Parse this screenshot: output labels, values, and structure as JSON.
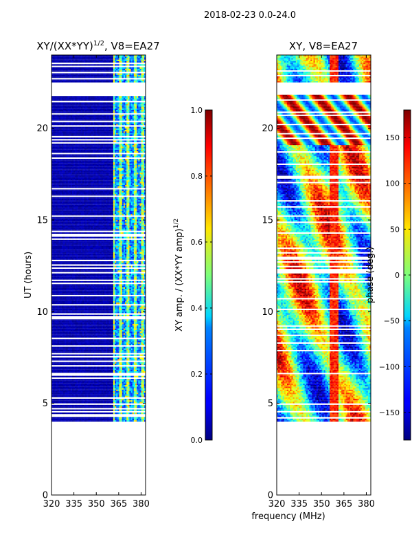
{
  "figure": {
    "suptitle": "2018-02-23 0.0-24.0",
    "common_xlabel": "frequency (MHz)"
  },
  "chart_data": [
    {
      "type": "heatmap",
      "title": "XY/(XX*YY)",
      "title_superscript": "1/2",
      "title_suffix": ", V8=EA27",
      "xlabel": "",
      "ylabel": "UT (hours)",
      "xlim": [
        320,
        383
      ],
      "ylim": [
        0,
        24
      ],
      "xticks": [
        320,
        335,
        350,
        365,
        380
      ],
      "xtick_labels": [
        "320",
        "335",
        "350",
        "365",
        "380"
      ],
      "yticks": [
        0,
        5,
        10,
        15,
        20
      ],
      "ytick_labels": [
        "0",
        "5",
        "10",
        "15",
        "20"
      ],
      "data_time_range": [
        4.0,
        24.0
      ],
      "data_gap": [
        21.9,
        22.5
      ],
      "band_edge_mhz": 361,
      "colorbar": {
        "colormap": "jet",
        "label": "XY amp. / (XX*YY amp)",
        "label_superscript": "1/2",
        "range": [
          0.0,
          1.0
        ],
        "ticks": [
          0.0,
          0.2,
          0.4,
          0.6,
          0.8,
          1.0
        ],
        "tick_labels": [
          "0.0",
          "0.2",
          "0.4",
          "0.6",
          "0.8",
          "1.0"
        ]
      }
    },
    {
      "type": "heatmap",
      "title": "XY, V8=EA27",
      "xlabel": "frequency (MHz)",
      "ylabel": "",
      "xlim": [
        320,
        383
      ],
      "ylim": [
        0,
        24
      ],
      "xticks": [
        320,
        335,
        350,
        365,
        380
      ],
      "xtick_labels": [
        "320",
        "335",
        "350",
        "365",
        "380"
      ],
      "yticks": [
        0,
        5,
        10,
        15,
        20
      ],
      "ytick_labels": [
        "0",
        "5",
        "10",
        "15",
        "20"
      ],
      "data_time_range": [
        4.0,
        24.0
      ],
      "data_gap": [
        21.9,
        22.5
      ],
      "colorbar": {
        "colormap": "jet",
        "label": "phase (deg.)",
        "range": [
          -180,
          180
        ],
        "ticks": [
          -150,
          -100,
          -50,
          0,
          50,
          100,
          150
        ],
        "tick_labels": [
          "−150",
          "−100",
          "−50",
          "0",
          "50",
          "100",
          "150"
        ]
      }
    }
  ]
}
